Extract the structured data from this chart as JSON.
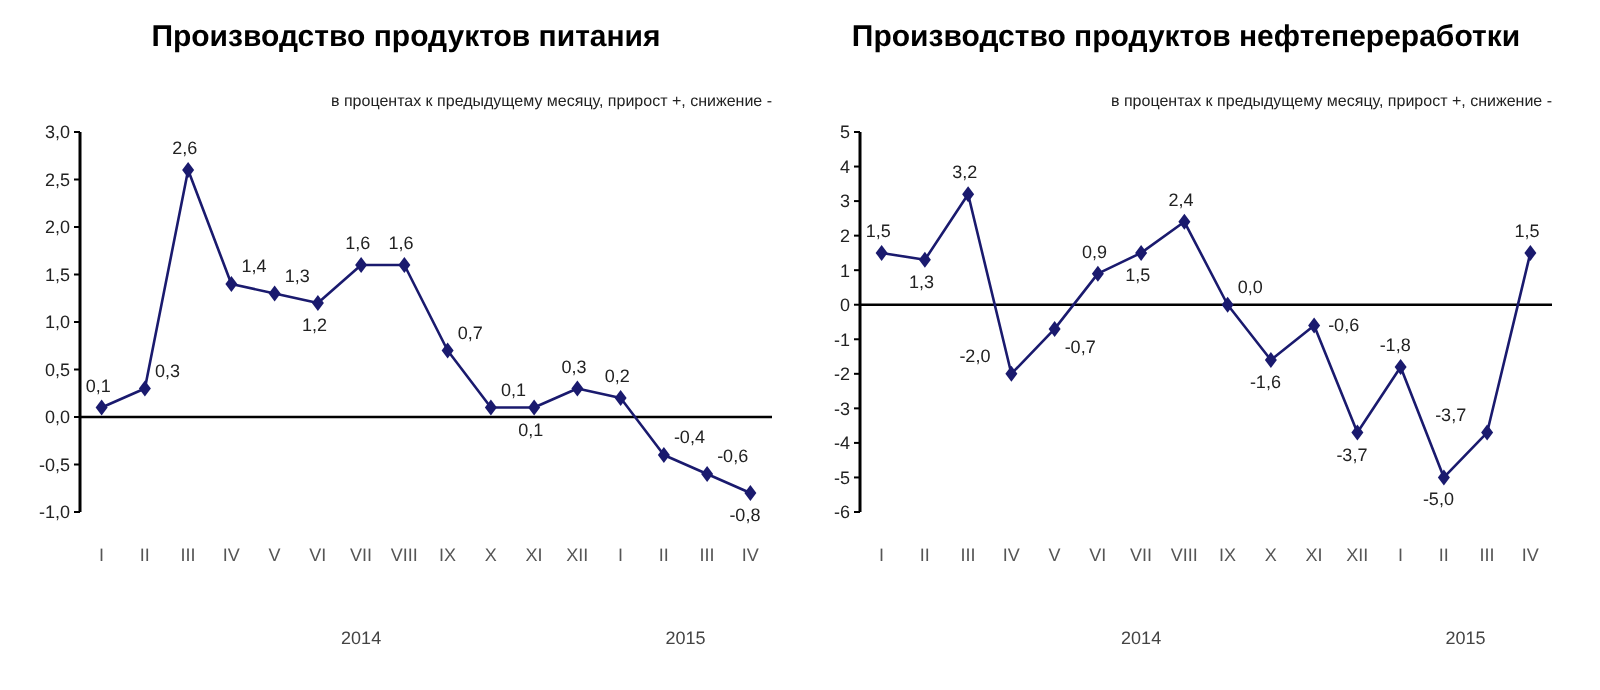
{
  "chart_data": [
    {
      "type": "line",
      "title": "Производство продуктов питания",
      "subtitle": "в процентах к предыдущему месяцу, прирост +, снижение -",
      "categories": [
        "I",
        "II",
        "III",
        "IV",
        "V",
        "VI",
        "VII",
        "VIII",
        "IX",
        "X",
        "XI",
        "XII",
        "I",
        "II",
        "III",
        "IV"
      ],
      "series": [
        {
          "color": "#1a1a6e",
          "values": [
            0.1,
            0.3,
            2.6,
            1.4,
            1.3,
            1.2,
            1.6,
            1.6,
            0.7,
            0.1,
            0.1,
            0.3,
            0.2,
            -0.4,
            -0.6,
            -0.8
          ],
          "value_labels": [
            "0,1",
            "0,3",
            "2,6",
            "1,4",
            "1,3",
            "1,2",
            "1,6",
            "1,6",
            "0,7",
            "0,1",
            "0,1",
            "0,3",
            "0,2",
            "-0,4",
            "-0,6",
            "-0,8"
          ]
        }
      ],
      "ylim": [
        -1,
        3
      ],
      "yticks": [
        {
          "value": -1,
          "label": "-1,0"
        },
        {
          "value": -0.5,
          "label": "-0,5"
        },
        {
          "value": 0,
          "label": "0,0"
        },
        {
          "value": 0.5,
          "label": "0,5"
        },
        {
          "value": 1,
          "label": "1,0"
        },
        {
          "value": 1.5,
          "label": "1,5"
        },
        {
          "value": 2,
          "label": "2,0"
        },
        {
          "value": 2.5,
          "label": "2,5"
        },
        {
          "value": 3,
          "label": "3,0"
        }
      ],
      "annotations": [
        "2014",
        "2015"
      ],
      "ref_lines": [
        {
          "axis": "y",
          "value": 0,
          "color": "#000000"
        }
      ],
      "marker": "diamond",
      "grid": false,
      "legend": false
    },
    {
      "type": "line",
      "title": "Производство продуктов нефтепереработки",
      "subtitle": "в процентах к предыдущему месяцу, прирост +, снижение -",
      "categories": [
        "I",
        "II",
        "III",
        "IV",
        "V",
        "VI",
        "VII",
        "VIII",
        "IX",
        "X",
        "XI",
        "XII",
        "I",
        "II",
        "III",
        "IV"
      ],
      "series": [
        {
          "color": "#1a1a6e",
          "values": [
            1.5,
            1.3,
            3.2,
            -2.0,
            -0.7,
            0.9,
            1.5,
            2.4,
            0.0,
            -1.6,
            -0.6,
            -3.7,
            -1.8,
            -5.0,
            -3.7,
            1.5
          ],
          "value_labels": [
            "1,5",
            "1,3",
            "3,2",
            "-2,0",
            "-0,7",
            "0,9",
            "1,5",
            "2,4",
            "0,0",
            "-1,6",
            "-0,6",
            "-3,7",
            "-1,8",
            "-5,0",
            "-3,7",
            "1,5"
          ]
        }
      ],
      "ylim": [
        -6,
        5
      ],
      "yticks": [
        -6,
        -5,
        -4,
        -3,
        -2,
        -1,
        0,
        1,
        2,
        3,
        4,
        5
      ],
      "annotations": [
        "2014",
        "2015"
      ],
      "ref_lines": [
        {
          "axis": "y",
          "value": 0,
          "color": "#000000"
        }
      ],
      "marker": "diamond",
      "grid": false,
      "legend": false
    }
  ]
}
